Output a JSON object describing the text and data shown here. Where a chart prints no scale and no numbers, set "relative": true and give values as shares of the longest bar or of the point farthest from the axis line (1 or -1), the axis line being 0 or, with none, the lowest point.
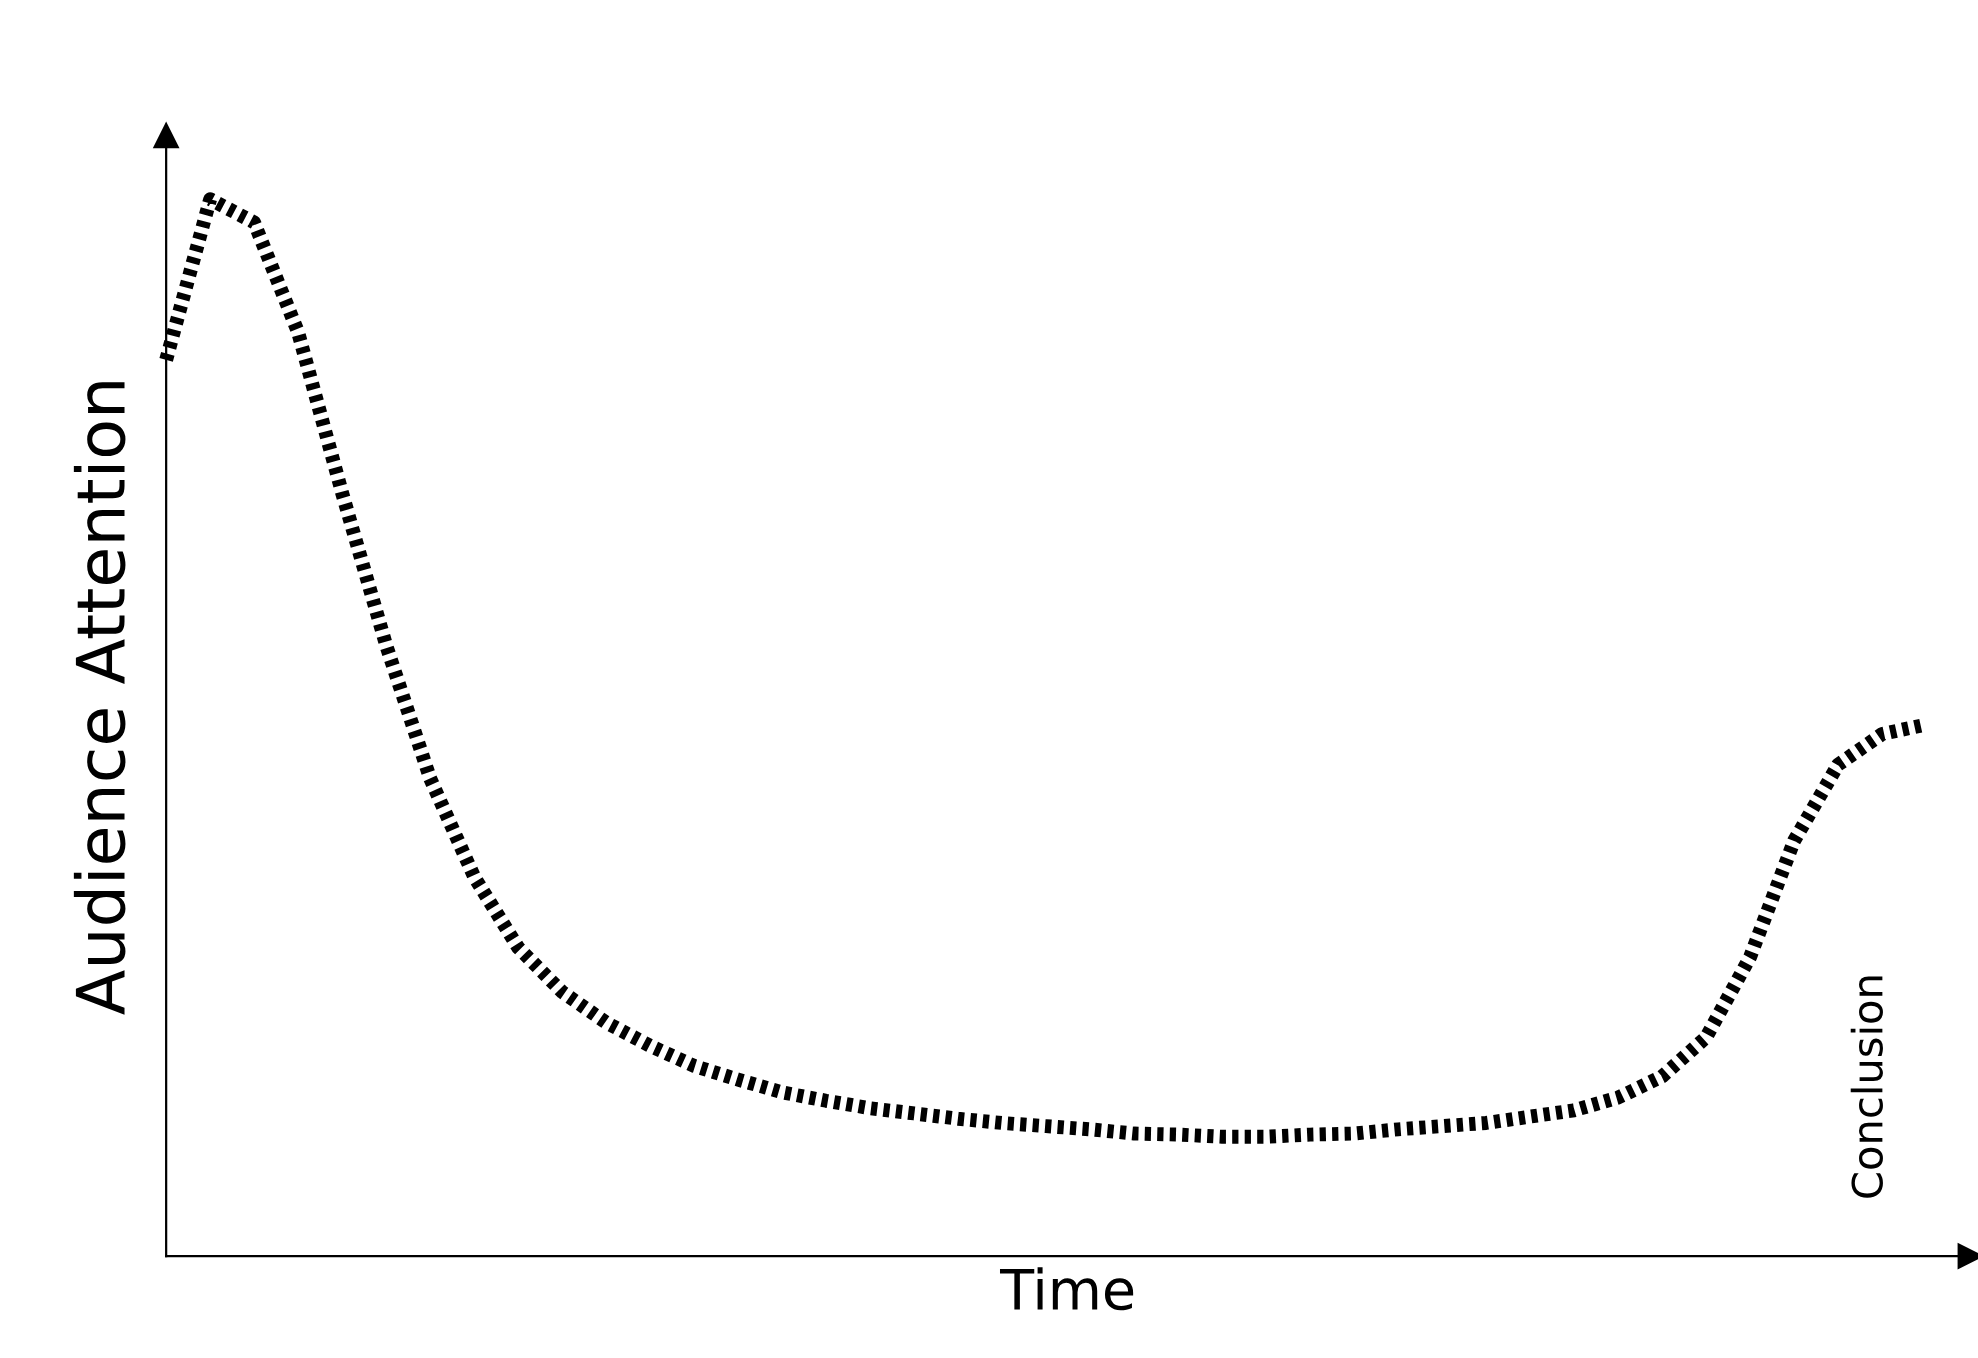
{
  "chart_data": {
    "type": "line",
    "relative": true,
    "xlabel": "Time",
    "ylabel": "Audience Attention",
    "annotations": [
      "Conclusion"
    ],
    "categories": [
      null,
      null,
      null,
      null,
      null,
      null,
      null,
      null,
      null,
      null,
      null,
      null,
      null,
      null,
      null,
      null,
      null,
      null,
      null,
      null,
      null,
      null,
      null,
      null,
      null,
      null,
      null,
      null,
      null,
      null,
      null,
      null,
      null,
      null,
      null,
      null,
      null,
      null,
      null,
      null,
      null
    ],
    "series": [
      {
        "color": "#000000",
        "values": [
          0.848,
          1,
          0.978,
          0.874,
          0.722,
          0.578,
          0.452,
          0.359,
          0.292,
          0.25,
          0.221,
          0.199,
          0.18,
          0.167,
          0.155,
          0.147,
          0.14,
          0.135,
          0.13,
          0.126,
          0.123,
          0.12,
          0.116,
          0.115,
          0.113,
          0.113,
          0.115,
          0.116,
          0.12,
          0.123,
          0.126,
          0.132,
          0.138,
          0.15,
          0.17,
          0.207,
          0.283,
          0.393,
          0.465,
          0.494,
          0.503
        ]
      }
    ],
    "line_style": "dotted",
    "tick_labels": false
  }
}
